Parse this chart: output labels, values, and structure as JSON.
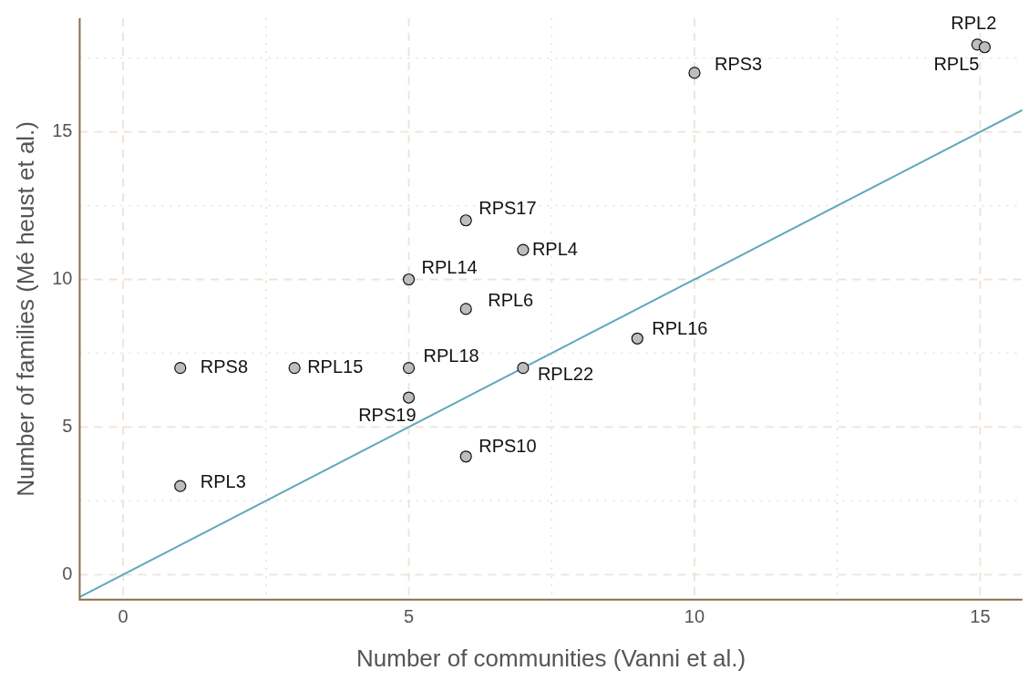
{
  "chart_data": {
    "type": "scatter",
    "xlabel": "Number of communities (Vanni et al.)",
    "ylabel": "Number of families (Mé heust et al.)",
    "xlim": [
      -0.76,
      15.74
    ],
    "ylim": [
      -0.85,
      18.85
    ],
    "xticks": [
      0,
      {
        "value": 2.5,
        "label": null
      },
      5,
      {
        "value": 7.5,
        "label": null
      },
      10,
      {
        "value": 12.5,
        "label": null
      },
      15
    ],
    "yticks": [
      0,
      {
        "value": 2.5,
        "label": null
      },
      5,
      {
        "value": 7.5,
        "label": null
      },
      10,
      {
        "value": 12.5,
        "label": null
      },
      15,
      {
        "value": 17.5,
        "label": null
      }
    ],
    "grid": true,
    "legend": false,
    "marker": "circle",
    "series": [
      {
        "color": "#bdbdbd",
        "x": [
          14.95,
          15.08,
          10,
          6,
          7,
          5,
          6,
          9,
          1,
          3,
          5,
          7,
          5,
          6,
          1
        ],
        "values": [
          17.96,
          17.87,
          17,
          12,
          11,
          10,
          9,
          8,
          7,
          7,
          7,
          7,
          6,
          4,
          3
        ]
      },
      {
        "type": "line",
        "color": "#5fa8bd",
        "x": [
          -0.76,
          15.74
        ],
        "values": [
          -0.76,
          15.74
        ],
        "marker": "none"
      }
    ],
    "annotations": [
      {
        "text": "RPL2",
        "x": 14.95,
        "y": 17.96
      },
      {
        "text": "RPL5",
        "x": 15.08,
        "y": 17.87
      },
      {
        "text": "RPS3",
        "x": 10,
        "y": 17
      },
      {
        "text": "RPS17",
        "x": 6,
        "y": 12
      },
      {
        "text": "RPL4",
        "x": 7,
        "y": 11
      },
      {
        "text": "RPL14",
        "x": 5,
        "y": 10
      },
      {
        "text": "RPL6",
        "x": 6,
        "y": 9
      },
      {
        "text": "RPL16",
        "x": 9,
        "y": 8
      },
      {
        "text": "RPS8",
        "x": 1,
        "y": 7
      },
      {
        "text": "RPL15",
        "x": 3,
        "y": 7
      },
      {
        "text": "RPL18",
        "x": 5,
        "y": 7
      },
      {
        "text": "RPL22",
        "x": 7,
        "y": 7
      },
      {
        "text": "RPS19",
        "x": 5,
        "y": 6
      },
      {
        "text": "RPS10",
        "x": 6,
        "y": 4
      },
      {
        "text": "RPL3",
        "x": 1,
        "y": 3
      }
    ]
  }
}
